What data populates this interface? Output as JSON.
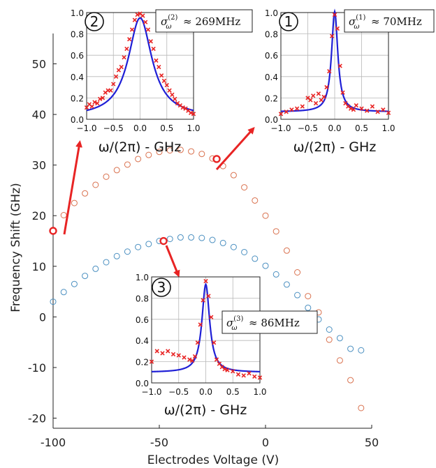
{
  "chart_data": [
    {
      "type": "scatter",
      "xlabel": "Electrodes Voltage (V)",
      "ylabel": "Frequency Shift (GHz)",
      "xlim": [
        -100,
        50
      ],
      "ylim": [
        -22,
        56
      ],
      "xticks": [
        -100,
        -50,
        0,
        50
      ],
      "xtick_labels": [
        "-100",
        "-50",
        "0",
        "50"
      ],
      "yticks": [
        -20,
        -10,
        0,
        10,
        20,
        30,
        40,
        50
      ],
      "ytick_labels": [
        "-20",
        "-10",
        "0",
        "10",
        "20",
        "30",
        "40",
        "50"
      ],
      "grid": false,
      "series": [
        {
          "color": "#d9714e",
          "marker": "open-circle",
          "x": [
            -95,
            -90,
            -85,
            -80,
            -75,
            -70,
            -65,
            -60,
            -55,
            -50,
            -45,
            -40,
            -35,
            -30,
            -25,
            -20,
            -15,
            -10,
            -5,
            0,
            5,
            10,
            15,
            20,
            25,
            30,
            35,
            40,
            45
          ],
          "y": [
            20.1,
            22.5,
            24.4,
            26.1,
            27.7,
            29.0,
            30.1,
            31.2,
            32.0,
            32.6,
            32.9,
            33.0,
            32.7,
            32.2,
            31.3,
            29.8,
            28.0,
            25.6,
            23.0,
            20.0,
            16.9,
            13.1,
            8.8,
            4.1,
            0.9,
            -4.5,
            -8.6,
            -12.5,
            -18.0
          ]
        },
        {
          "color": "#4a8fc0",
          "marker": "open-circle",
          "x": [
            -100,
            -95,
            -90,
            -85,
            -80,
            -75,
            -70,
            -65,
            -60,
            -55,
            -50,
            -45,
            -40,
            -35,
            -30,
            -25,
            -20,
            -15,
            -10,
            -5,
            0,
            5,
            10,
            15,
            20,
            25,
            30,
            35,
            40,
            45
          ],
          "y": [
            3.0,
            4.9,
            6.5,
            8.1,
            9.5,
            10.8,
            12.0,
            12.9,
            13.8,
            14.4,
            15.0,
            15.4,
            15.7,
            15.7,
            15.6,
            15.2,
            14.6,
            13.8,
            12.8,
            11.5,
            10.1,
            8.4,
            6.4,
            4.3,
            1.8,
            -0.5,
            -2.5,
            -4.2,
            -6.3,
            -6.6
          ]
        }
      ],
      "highlighted_points": [
        {
          "x": -100,
          "y": 17.0,
          "color": "#e82424"
        },
        {
          "x": -23,
          "y": 31.2,
          "color": "#e82424"
        },
        {
          "x": -48,
          "y": 15.0,
          "color": "#e82424"
        }
      ]
    },
    {
      "type": "line",
      "label": "2",
      "annotation": "≈ 269MHz",
      "xlabel": "ω/(2π) - GHz",
      "xlim": [
        -1.0,
        1.0
      ],
      "ylim": [
        0.0,
        1.0
      ],
      "xticks": [
        -1.0,
        -0.5,
        0.0,
        0.5,
        1.0
      ],
      "xtick_labels": [
        "−1.0",
        "−0.5",
        "0.0",
        "0.5",
        "1.0"
      ],
      "yticks": [
        0.0,
        0.2,
        0.4,
        0.6,
        0.8,
        1.0
      ],
      "ytick_labels": [
        "0.0",
        "0.2",
        "0.4",
        "0.6",
        "0.8",
        "1.0"
      ],
      "grid": true,
      "fit": {
        "model": "lorentzian",
        "center": 0.0,
        "hwhm": 0.269,
        "offset": 0.02,
        "amplitude": 0.93,
        "color": "#1f1fd6"
      },
      "data_points": {
        "color": "#e82424",
        "marker": "x",
        "x": [
          -1.0,
          -0.95,
          -0.9,
          -0.85,
          -0.8,
          -0.75,
          -0.7,
          -0.65,
          -0.6,
          -0.55,
          -0.5,
          -0.45,
          -0.4,
          -0.35,
          -0.3,
          -0.25,
          -0.2,
          -0.15,
          -0.1,
          -0.05,
          0.0,
          0.05,
          0.1,
          0.15,
          0.2,
          0.25,
          0.3,
          0.35,
          0.4,
          0.45,
          0.5,
          0.55,
          0.6,
          0.65,
          0.7,
          0.75,
          0.8,
          0.85,
          0.9,
          0.95,
          1.0
        ],
        "y": [
          0.11,
          0.14,
          0.12,
          0.16,
          0.15,
          0.19,
          0.2,
          0.25,
          0.27,
          0.27,
          0.33,
          0.4,
          0.46,
          0.49,
          0.58,
          0.66,
          0.75,
          0.84,
          0.93,
          0.98,
          0.99,
          0.97,
          0.91,
          0.84,
          0.73,
          0.66,
          0.55,
          0.49,
          0.41,
          0.36,
          0.32,
          0.27,
          0.23,
          0.19,
          0.15,
          0.13,
          0.11,
          0.1,
          0.08,
          0.06,
          0.05
        ]
      }
    },
    {
      "type": "line",
      "label": "1",
      "annotation": "≈ 70MHz",
      "xlabel": "ω/(2π) - GHz",
      "xlim": [
        -1.0,
        1.0
      ],
      "ylim": [
        0.0,
        1.0
      ],
      "xticks": [
        -1.0,
        -0.5,
        0.0,
        0.5,
        1.0
      ],
      "xtick_labels": [
        "−1.0",
        "−0.5",
        "0.0",
        "0.5",
        "1.0"
      ],
      "yticks": [
        0.0,
        0.2,
        0.4,
        0.6,
        0.8,
        1.0
      ],
      "ytick_labels": [
        "0.0",
        "0.2",
        "0.4",
        "0.6",
        "0.8",
        "1.0"
      ],
      "grid": true,
      "fit": {
        "model": "lorentzian",
        "center": 0.0,
        "hwhm": 0.07,
        "offset": 0.07,
        "amplitude": 0.94,
        "color": "#1f1fd6"
      },
      "data_points": {
        "color": "#e82424",
        "marker": "x",
        "x": [
          -1.0,
          -0.9,
          -0.8,
          -0.7,
          -0.6,
          -0.5,
          -0.45,
          -0.4,
          -0.35,
          -0.3,
          -0.25,
          -0.2,
          -0.15,
          -0.1,
          -0.05,
          0.0,
          0.05,
          0.1,
          0.15,
          0.2,
          0.25,
          0.3,
          0.35,
          0.4,
          0.5,
          0.6,
          0.7,
          0.8,
          0.9,
          1.0
        ],
        "y": [
          0.05,
          0.07,
          0.09,
          0.1,
          0.12,
          0.2,
          0.18,
          0.22,
          0.15,
          0.24,
          0.18,
          0.21,
          0.3,
          0.45,
          0.78,
          0.98,
          0.85,
          0.5,
          0.25,
          0.15,
          0.12,
          0.1,
          0.09,
          0.13,
          0.1,
          0.08,
          0.12,
          0.07,
          0.09,
          0.06
        ]
      }
    },
    {
      "type": "line",
      "label": "3",
      "annotation": "≈ 86MHz",
      "xlabel": "ω/(2π) - GHz",
      "xlim": [
        -1.0,
        1.0
      ],
      "ylim": [
        0.0,
        1.0
      ],
      "xticks": [
        -1.0,
        -0.5,
        0.0,
        0.5,
        1.0
      ],
      "xtick_labels": [
        "−1.0",
        "−0.5",
        "0.0",
        "0.5",
        "1.0"
      ],
      "yticks": [
        0.0,
        0.2,
        0.4,
        0.6,
        0.8,
        1.0
      ],
      "ytick_labels": [
        "0.0",
        "0.2",
        "0.4",
        "0.6",
        "0.8",
        "1.0"
      ],
      "grid": true,
      "fit": {
        "model": "lorentzian",
        "center": 0.0,
        "hwhm": 0.086,
        "offset": 0.1,
        "amplitude": 0.83,
        "color": "#1f1fd6"
      },
      "data_points": {
        "color": "#e82424",
        "marker": "x",
        "x": [
          -1.0,
          -0.9,
          -0.8,
          -0.7,
          -0.6,
          -0.5,
          -0.4,
          -0.3,
          -0.25,
          -0.2,
          -0.15,
          -0.1,
          -0.05,
          0.0,
          0.05,
          0.1,
          0.15,
          0.2,
          0.25,
          0.3,
          0.35,
          0.4,
          0.5,
          0.6,
          0.7,
          0.8,
          0.9,
          1.0
        ],
        "y": [
          0.2,
          0.3,
          0.28,
          0.3,
          0.27,
          0.26,
          0.24,
          0.22,
          0.21,
          0.25,
          0.38,
          0.55,
          0.78,
          0.96,
          0.82,
          0.62,
          0.38,
          0.22,
          0.18,
          0.15,
          0.13,
          0.12,
          0.11,
          0.08,
          0.07,
          0.09,
          0.06,
          0.05
        ]
      }
    }
  ]
}
